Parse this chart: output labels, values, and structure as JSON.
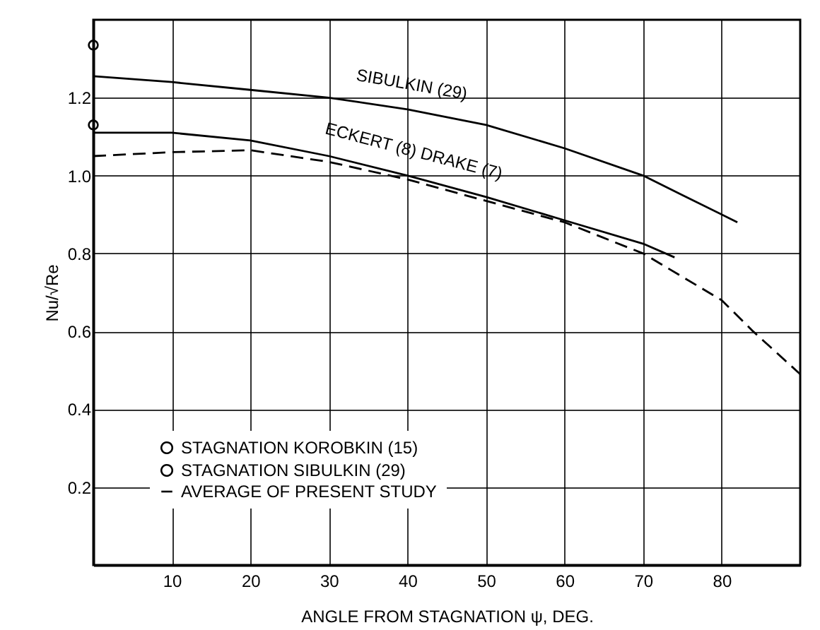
{
  "chart_data": {
    "type": "line",
    "xlabel": "ANGLE FROM STAGNATION ψ, DEG.",
    "ylabel": "Nu/√Re",
    "xlim": [
      0,
      90
    ],
    "ylim": [
      0,
      1.4
    ],
    "xticks": [
      10,
      20,
      30,
      40,
      50,
      60,
      70,
      80
    ],
    "yticks": [
      0.2,
      0.4,
      0.6,
      0.8,
      {
        "value": 1,
        "label": "1.0"
      },
      1.2
    ],
    "grid": true,
    "legend": "bottom left",
    "series": [
      {
        "name": "SIBULKIN (29)",
        "line_style": "solid",
        "color": "#000000",
        "x": [
          0,
          10,
          20,
          30,
          40,
          50,
          60,
          70,
          75,
          82
        ],
        "values": [
          1.255,
          1.24,
          1.22,
          1.2,
          1.17,
          1.13,
          1.07,
          1.0,
          0.95,
          0.88
        ]
      },
      {
        "name": "ECKERT (8) DRAKE (7)",
        "line_style": "solid",
        "color": "#000000",
        "x": [
          0,
          10,
          20,
          30,
          40,
          50,
          60,
          70,
          74
        ],
        "values": [
          1.11,
          1.11,
          1.09,
          1.05,
          1.0,
          0.945,
          0.885,
          0.825,
          0.79
        ]
      },
      {
        "name": "AVERAGE OF PRESENT STUDY",
        "line_style": "dashed",
        "color": "#000000",
        "x": [
          0,
          10,
          20,
          30,
          40,
          50,
          60,
          70,
          80,
          84,
          90
        ],
        "values": [
          1.05,
          1.06,
          1.065,
          1.035,
          0.99,
          0.935,
          0.88,
          0.8,
          0.68,
          0.6,
          0.49
        ]
      },
      {
        "name": "STAGNATION KOROBKIN (15)",
        "type": "scatter",
        "marker": "circle",
        "color": "#000000",
        "x": [
          0
        ],
        "values": [
          1.335
        ]
      },
      {
        "name": "STAGNATION SIBULKIN (29)",
        "type": "scatter",
        "marker": "circle",
        "color": "#000000",
        "x": [
          0
        ],
        "values": [
          1.13
        ]
      }
    ]
  }
}
